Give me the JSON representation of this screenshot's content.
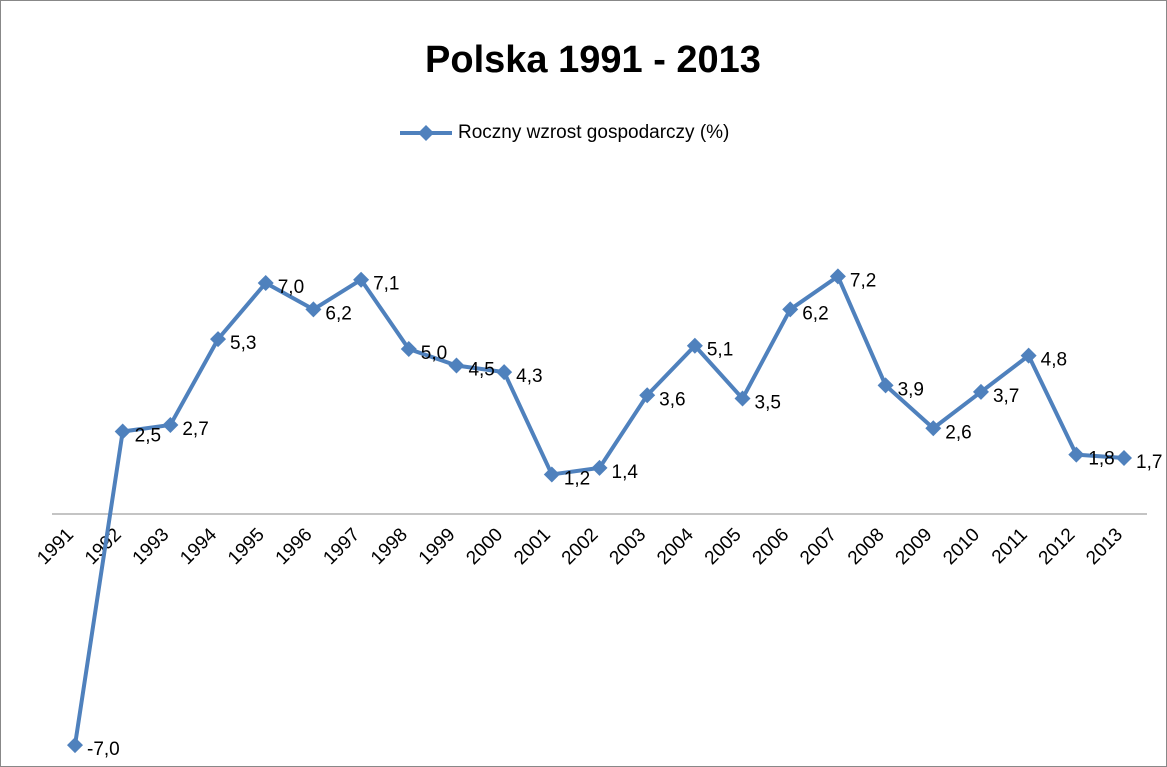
{
  "chart_data": {
    "type": "line",
    "title": "Polska 1991 - 2013",
    "categories": [
      "1991",
      "1992",
      "1993",
      "1994",
      "1995",
      "1996",
      "1997",
      "1998",
      "1999",
      "2000",
      "2001",
      "2002",
      "2003",
      "2004",
      "2005",
      "2006",
      "2007",
      "2008",
      "2009",
      "2010",
      "2011",
      "2012",
      "2013"
    ],
    "series": [
      {
        "name": "Roczny wzrost gospodarczy (%)",
        "color": "#4f81bd",
        "values": [
          -7.0,
          2.5,
          2.7,
          5.3,
          7.0,
          6.2,
          7.1,
          5.0,
          4.5,
          4.3,
          1.2,
          1.4,
          3.6,
          5.1,
          3.5,
          6.2,
          7.2,
          3.9,
          2.6,
          3.7,
          4.8,
          1.8,
          1.7
        ],
        "value_labels": [
          "-7,0",
          "2,5",
          "2,7",
          "5,3",
          "7,0",
          "6,2",
          "7,1",
          "5,0",
          "4,5",
          "4,3",
          "1,2",
          "1,4",
          "3,6",
          "5,1",
          "3,5",
          "6,2",
          "7,2",
          "3,9",
          "2,6",
          "3,7",
          "4,8",
          "1,8",
          "1,7"
        ]
      }
    ],
    "ylim": [
      -7.3,
      10
    ],
    "legend": "top"
  }
}
